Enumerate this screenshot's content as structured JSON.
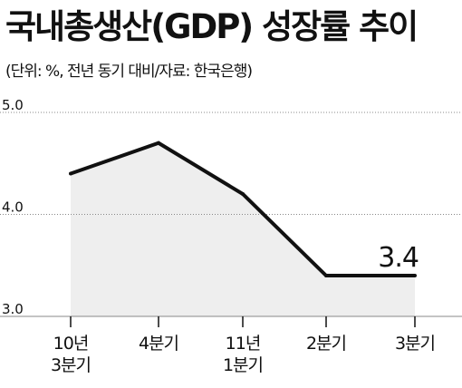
{
  "chart_data": {
    "type": "line",
    "title": "국내총생산(GDP) 성장률 추이",
    "subtitle": "(단위: %, 전년 동기 대비/자료: 한국은행)",
    "categories": [
      [
        "10년",
        "3분기"
      ],
      [
        "4분기"
      ],
      [
        "11년",
        "1분기"
      ],
      [
        "2분기"
      ],
      [
        "3분기"
      ]
    ],
    "values": [
      4.4,
      4.7,
      4.2,
      3.4,
      3.4
    ],
    "ylim": [
      3.0,
      5.0
    ],
    "yticks": [
      "5.0",
      "4.0",
      "3.0"
    ],
    "grid": true,
    "data_labels": [
      {
        "index": 4,
        "text": "3.4"
      }
    ],
    "colors": {
      "line": "#111111",
      "area": "#eeeeee",
      "grid": "#888888"
    }
  }
}
